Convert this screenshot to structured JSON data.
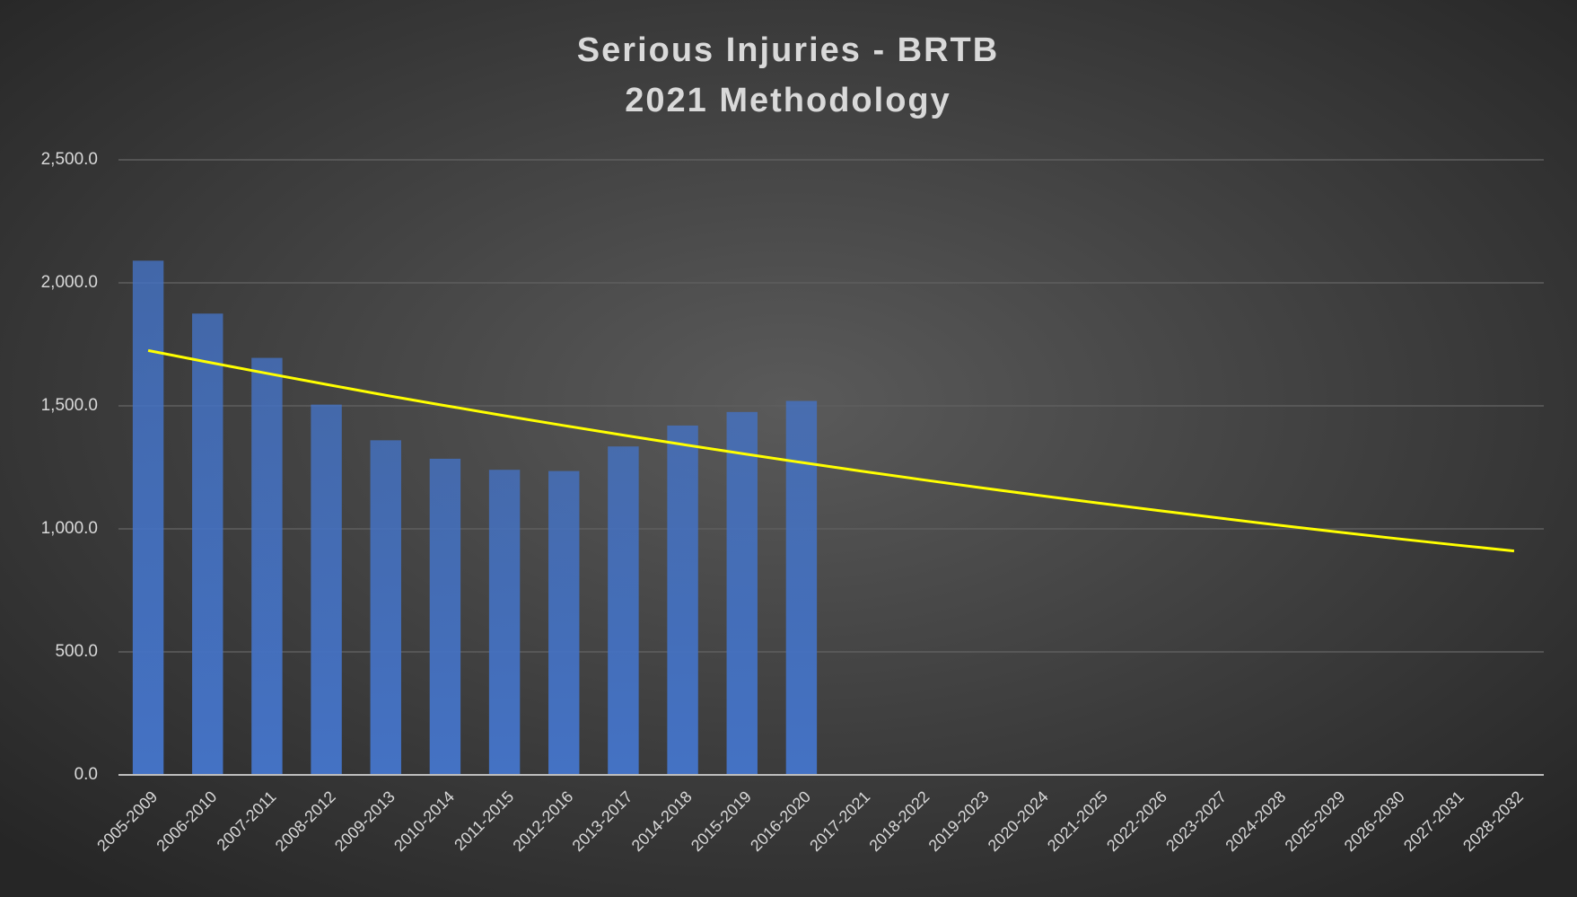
{
  "chart_data": {
    "type": "bar",
    "title": "Serious Injuries - BRTB",
    "subtitle": "2021 Methodology",
    "categories": [
      "2005-2009",
      "2006-2010",
      "2007-2011",
      "2008-2012",
      "2009-2013",
      "2010-2014",
      "2011-2015",
      "2012-2016",
      "2013-2017",
      "2014-2018",
      "2015-2019",
      "2016-2020",
      "2017-2021",
      "2018-2022",
      "2019-2023",
      "2020-2024",
      "2021-2025",
      "2022-2026",
      "2023-2027",
      "2024-2028",
      "2025-2029",
      "2026-2030",
      "2027-2031",
      "2028-2032"
    ],
    "series": [
      {
        "type": "bar",
        "color": "#4472c4",
        "values": [
          2090,
          1875,
          1695,
          1505,
          1360,
          1285,
          1240,
          1235,
          1335,
          1420,
          1475,
          1520,
          null,
          null,
          null,
          null,
          null,
          null,
          null,
          null,
          null,
          null,
          null,
          null
        ]
      },
      {
        "type": "line",
        "color": "#ffff00",
        "values": [
          1725,
          1678,
          1632,
          1587,
          1543,
          1501,
          1460,
          1420,
          1381,
          1343,
          1306,
          1270,
          1235,
          1201,
          1168,
          1136,
          1105,
          1075,
          1045,
          1016,
          988,
          961,
          935,
          910
        ]
      }
    ],
    "ylim": [
      0,
      2500
    ],
    "yticks": [
      {
        "value": 0,
        "label": "0.0"
      },
      {
        "value": 500,
        "label": "500.0"
      },
      {
        "value": 1000,
        "label": "1,000.0"
      },
      {
        "value": 1500,
        "label": "1,500.0"
      },
      {
        "value": 2000,
        "label": "2,000.0"
      },
      {
        "value": 2500,
        "label": "2,500.0"
      }
    ],
    "grid": true
  }
}
